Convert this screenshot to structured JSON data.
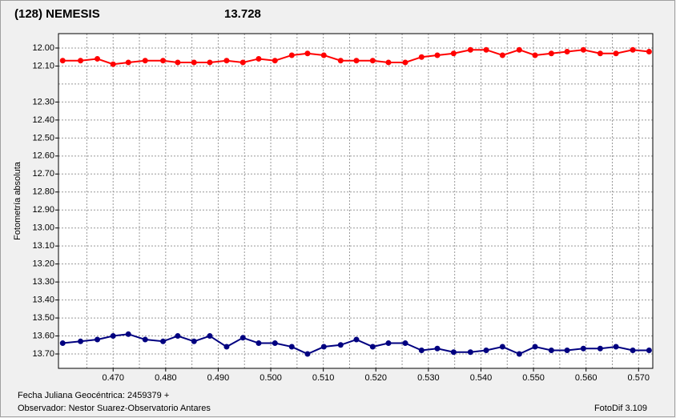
{
  "chart_data": {
    "type": "line",
    "title": "(128) NEMESIS",
    "title_color": "#ff0000",
    "subtitle": "13.728",
    "subtitle_color": "#000080",
    "ylabel": "Fotometría absoluta",
    "xlabel": "Fecha Juliana Geocéntrica: 2459379 +",
    "observer": "Observador: Nestor Suarez-Observatorio Antares",
    "software": "FotoDif 3.109",
    "y_inverted": true,
    "grid": true,
    "xlim": [
      0.4596,
      0.5727
    ],
    "ylim": [
      11.92,
      13.78
    ],
    "xticks": [
      {
        "value": 0.47,
        "label": "0.470"
      },
      {
        "value": 0.48,
        "label": "0.480"
      },
      {
        "value": 0.49,
        "label": "0.490"
      },
      {
        "value": 0.5,
        "label": "0.500"
      },
      {
        "value": 0.51,
        "label": "0.510"
      },
      {
        "value": 0.52,
        "label": "0.520"
      },
      {
        "value": 0.53,
        "label": "0.530"
      },
      {
        "value": 0.54,
        "label": "0.540"
      },
      {
        "value": 0.55,
        "label": "0.550"
      },
      {
        "value": 0.56,
        "label": "0.560"
      },
      {
        "value": 0.57,
        "label": "0.570"
      }
    ],
    "x_minor_grid": [
      0.465,
      0.475,
      0.485,
      0.495,
      0.505,
      0.515,
      0.525,
      0.535,
      0.545,
      0.555,
      0.565
    ],
    "yticks": [
      {
        "value": 12,
        "label": "12.00"
      },
      {
        "value": 12.1,
        "label": "12.10"
      },
      {
        "value": 12.3,
        "label": "12.30"
      },
      {
        "value": 12.4,
        "label": "12.40"
      },
      {
        "value": 12.5,
        "label": "12.50"
      },
      {
        "value": 12.6,
        "label": "12.60"
      },
      {
        "value": 12.7,
        "label": "12.70"
      },
      {
        "value": 12.8,
        "label": "12.80"
      },
      {
        "value": 12.9,
        "label": "12.90"
      },
      {
        "value": 13,
        "label": "13.00"
      },
      {
        "value": 13.1,
        "label": "13.10"
      },
      {
        "value": 13.2,
        "label": "13.20"
      },
      {
        "value": 13.3,
        "label": "13.30"
      },
      {
        "value": 13.4,
        "label": "13.40"
      },
      {
        "value": 13.5,
        "label": "13.50"
      },
      {
        "value": 13.6,
        "label": "13.60"
      },
      {
        "value": 13.7,
        "label": "13.70"
      }
    ],
    "y_minor_grid": [
      12.2
    ],
    "x": [
      0.4604,
      0.4638,
      0.467,
      0.47,
      0.4729,
      0.4761,
      0.4795,
      0.4823,
      0.4854,
      0.4884,
      0.4916,
      0.4947,
      0.4977,
      0.5008,
      0.504,
      0.507,
      0.5101,
      0.5133,
      0.5163,
      0.5194,
      0.5224,
      0.5256,
      0.5287,
      0.5317,
      0.5348,
      0.538,
      0.541,
      0.5441,
      0.5473,
      0.5503,
      0.5534,
      0.5564,
      0.5595,
      0.5627,
      0.5657,
      0.5689,
      0.572
    ],
    "series": [
      {
        "color": "#ff0000",
        "values": [
          12.07,
          12.07,
          12.06,
          12.09,
          12.08,
          12.07,
          12.07,
          12.08,
          12.08,
          12.08,
          12.07,
          12.08,
          12.06,
          12.07,
          12.04,
          12.03,
          12.04,
          12.07,
          12.07,
          12.07,
          12.08,
          12.08,
          12.05,
          12.04,
          12.03,
          12.01,
          12.01,
          12.04,
          12.01,
          12.04,
          12.03,
          12.02,
          12.01,
          12.03,
          12.03,
          12.01,
          12.02
        ]
      },
      {
        "color": "#000080",
        "values": [
          13.64,
          13.63,
          13.62,
          13.6,
          13.59,
          13.62,
          13.63,
          13.6,
          13.63,
          13.6,
          13.66,
          13.61,
          13.64,
          13.64,
          13.66,
          13.7,
          13.66,
          13.65,
          13.62,
          13.66,
          13.64,
          13.64,
          13.68,
          13.67,
          13.69,
          13.69,
          13.68,
          13.66,
          13.7,
          13.66,
          13.68,
          13.68,
          13.67,
          13.67,
          13.66,
          13.68,
          13.68
        ]
      }
    ]
  }
}
